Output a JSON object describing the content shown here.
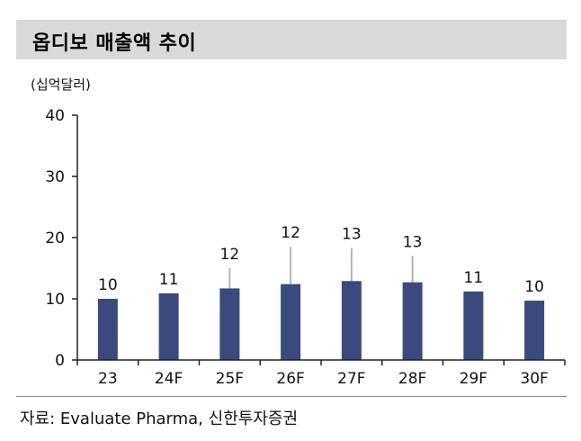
{
  "title": "옵디보 매출액 추이",
  "unit_label": "(십억달러)",
  "source": "자료: Evaluate Pharma, 신한투자증권",
  "colors": {
    "bar": "#3b4a7e",
    "error_bar": "#b3b3b3",
    "axis": "#222222"
  },
  "chart_data": {
    "type": "bar",
    "categories": [
      "23",
      "24F",
      "25F",
      "26F",
      "27F",
      "28F",
      "29F",
      "30F"
    ],
    "values": [
      10,
      10.9,
      11.7,
      12.4,
      12.9,
      12.7,
      11.2,
      9.7
    ],
    "data_labels": [
      "10",
      "11",
      "12",
      "12",
      "13",
      "13",
      "11",
      "10"
    ],
    "error_high": [
      null,
      null,
      15,
      18.5,
      18.3,
      17,
      null,
      null
    ],
    "ylim": [
      0,
      40
    ],
    "yticks": [
      0,
      10,
      20,
      30,
      40
    ],
    "ylabel": "(십억달러)",
    "xlabel": "",
    "grid": false
  }
}
